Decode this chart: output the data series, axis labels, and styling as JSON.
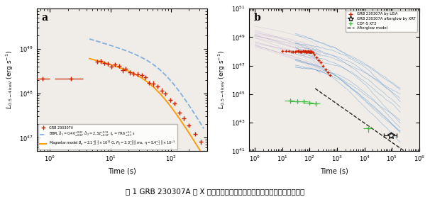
{
  "title": "图 1 GRB 230307A 的 X 射线光变曲线以及磁陀星作为中心引擎的模型拟合",
  "panel_a": {
    "label": "a",
    "xlabel": "Time (s)",
    "ylabel": "$L_{0.5-4\\,\\mathrm{keV}}$ (erg s$^{-1}$)",
    "xlim": [
      0.6,
      400
    ],
    "ylim": [
      5e+46,
      8e+49
    ],
    "data_label": "GRB 230307A",
    "bbpl_label": "BBPL $\\hat{d}_1 = 0.40^{+0.02}_{-0.02}$, $\\hat{d}_2 = 2.32^{+0.13}_{-0.13}$, $t_b = 79.6^{+2.1}_{-2.1}$ s",
    "magnetar_label": "Magnetar model $B_p = 2.1^{+0.3}_{-0.3} \\times 10^{14}$ G, $P_0 = 3.3^{+0.4}_{-0.4}$ ms, $\\eta = 5.4^{+1.0}_{-1.0} \\times 10^{-3}$",
    "data_color": "#cc2200",
    "bbpl_color": "#7aaddd",
    "magnetar_color": "#ff9900",
    "background_color": "#f0ede8"
  },
  "panel_b": {
    "label": "b",
    "xlabel": "Time (s)",
    "ylabel": "$L_{0.5-4\\,\\mathrm{keV}}$ (erg s$^{-1}$)",
    "xlim": [
      0.6,
      1000000.0
    ],
    "ylim": [
      1e+41,
      1e+51
    ],
    "grb_label": "GRB 230307A by LEIA",
    "afterglow_label": "GRB 230307A afterglow by XRT",
    "cdf_label": "CDF-S XT2",
    "model_label": "Afterglow model",
    "grb_color": "#cc2200",
    "afterglow_color": "#222222",
    "cdf_color": "#44bb44",
    "model_color": "#222222",
    "blue_color": "#4488cc",
    "purple_color": "#9977bb",
    "background_color": "#f0ede8"
  }
}
